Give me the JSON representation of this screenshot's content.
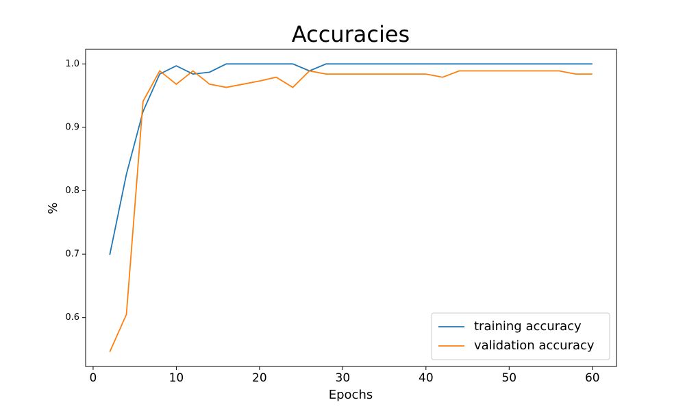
{
  "chart_data": {
    "type": "line",
    "title": "Accuracies",
    "x_label": "Epochs",
    "y_label": "%",
    "x": [
      2,
      4,
      6,
      8,
      10,
      12,
      14,
      16,
      18,
      20,
      22,
      24,
      26,
      28,
      30,
      32,
      34,
      36,
      38,
      40,
      42,
      44,
      46,
      48,
      50,
      52,
      54,
      56,
      58,
      60
    ],
    "series": [
      {
        "name": "training accuracy",
        "color": "#1f77b4",
        "values": [
          0.699,
          0.826,
          0.925,
          0.984,
          0.997,
          0.984,
          0.987,
          1.0,
          1.0,
          1.0,
          1.0,
          1.0,
          0.989,
          1.0,
          1.0,
          1.0,
          1.0,
          1.0,
          1.0,
          1.0,
          1.0,
          1.0,
          1.0,
          1.0,
          1.0,
          1.0,
          1.0,
          1.0,
          1.0,
          1.0
        ]
      },
      {
        "name": "validation accuracy",
        "color": "#ff7f0e",
        "values": [
          0.546,
          0.605,
          0.941,
          0.989,
          0.968,
          0.989,
          0.968,
          0.963,
          0.968,
          0.973,
          0.979,
          0.963,
          0.989,
          0.984,
          0.984,
          0.984,
          0.984,
          0.984,
          0.984,
          0.984,
          0.979,
          0.989,
          0.989,
          0.989,
          0.989,
          0.989,
          0.989,
          0.989,
          0.984,
          0.984
        ]
      }
    ],
    "xlim": [
      -0.9,
      62.9
    ],
    "ylim": [
      0.523,
      1.023
    ],
    "xticks": [
      0,
      10,
      20,
      30,
      40,
      50,
      60
    ],
    "yticks": [
      0.6,
      0.7,
      0.8,
      0.9,
      {
        "value": 1,
        "label": "1.0"
      }
    ],
    "legend": "lower right"
  }
}
